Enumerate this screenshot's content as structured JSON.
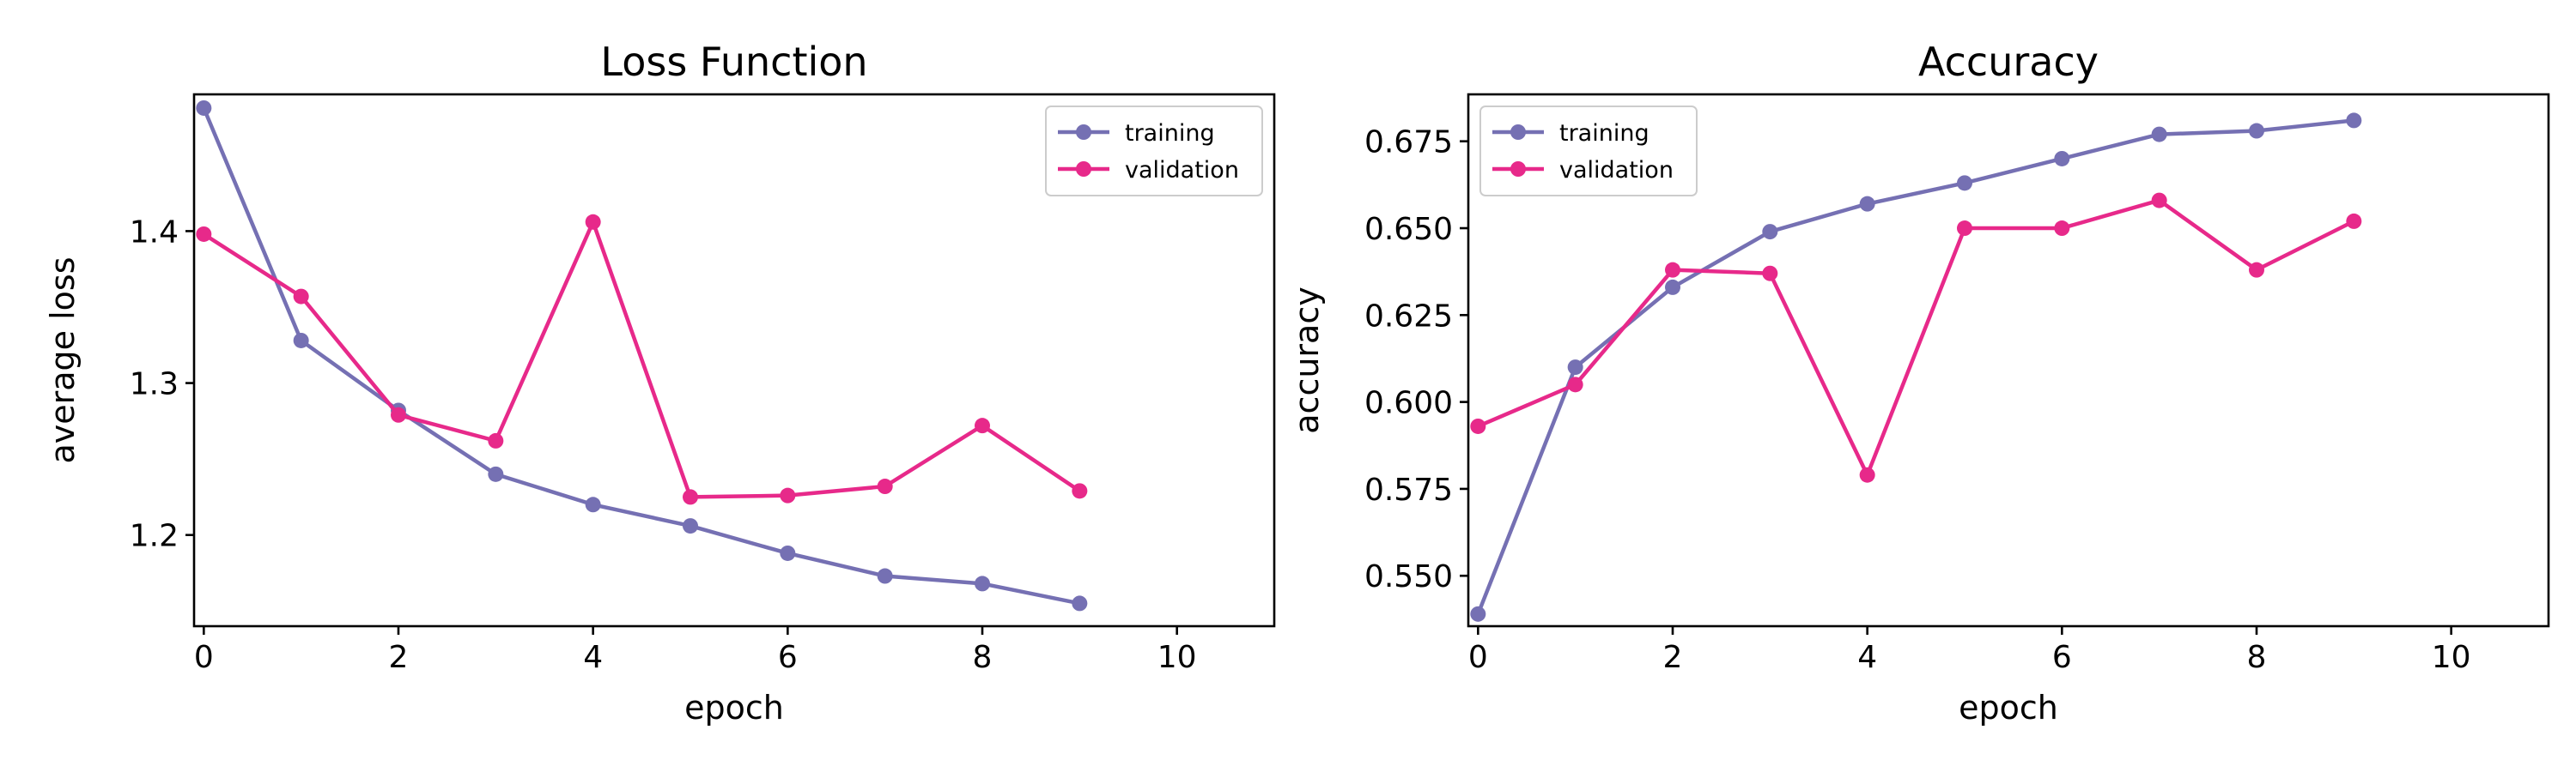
{
  "chart_data": [
    {
      "type": "line",
      "title": "Loss Function",
      "xlabel": "epoch",
      "ylabel": "average loss",
      "xlim": [
        -0.1,
        11.0
      ],
      "ylim": [
        1.14,
        1.49
      ],
      "xticks": [
        0,
        2,
        4,
        6,
        8,
        10
      ],
      "xtick_labels": [
        "0",
        "2",
        "4",
        "6",
        "8",
        "10"
      ],
      "yticks": [
        1.2,
        1.3,
        1.4
      ],
      "ytick_labels": [
        "1.2",
        "1.3",
        "1.4"
      ],
      "grid": false,
      "legend_position": "top-right",
      "x": [
        0,
        1,
        2,
        3,
        4,
        5,
        6,
        7,
        8,
        9
      ],
      "series": [
        {
          "name": "training",
          "color": "#7570b3",
          "values": [
            1.481,
            1.328,
            1.282,
            1.24,
            1.22,
            1.206,
            1.188,
            1.173,
            1.168,
            1.155
          ]
        },
        {
          "name": "validation",
          "color": "#e7298a",
          "values": [
            1.398,
            1.357,
            1.279,
            1.262,
            1.406,
            1.225,
            1.226,
            1.232,
            1.272,
            1.229
          ]
        }
      ]
    },
    {
      "type": "line",
      "title": "Accuracy",
      "xlabel": "epoch",
      "ylabel": "accuracy",
      "xlim": [
        -0.1,
        11.0
      ],
      "ylim": [
        0.5355,
        0.6885
      ],
      "xticks": [
        0,
        2,
        4,
        6,
        8,
        10
      ],
      "xtick_labels": [
        "0",
        "2",
        "4",
        "6",
        "8",
        "10"
      ],
      "yticks": [
        0.55,
        0.575,
        0.6,
        0.625,
        0.65,
        0.675
      ],
      "ytick_labels": [
        "0.550",
        "0.575",
        "0.600",
        "0.625",
        "0.650",
        "0.675"
      ],
      "grid": false,
      "legend_position": "top-left",
      "x": [
        0,
        1,
        2,
        3,
        4,
        5,
        6,
        7,
        8,
        9
      ],
      "series": [
        {
          "name": "training",
          "color": "#7570b3",
          "values": [
            0.539,
            0.61,
            0.633,
            0.649,
            0.657,
            0.663,
            0.67,
            0.677,
            0.678,
            0.681
          ]
        },
        {
          "name": "validation",
          "color": "#e7298a",
          "values": [
            0.593,
            0.605,
            0.638,
            0.637,
            0.579,
            0.65,
            0.65,
            0.658,
            0.638,
            0.652
          ]
        }
      ]
    }
  ]
}
